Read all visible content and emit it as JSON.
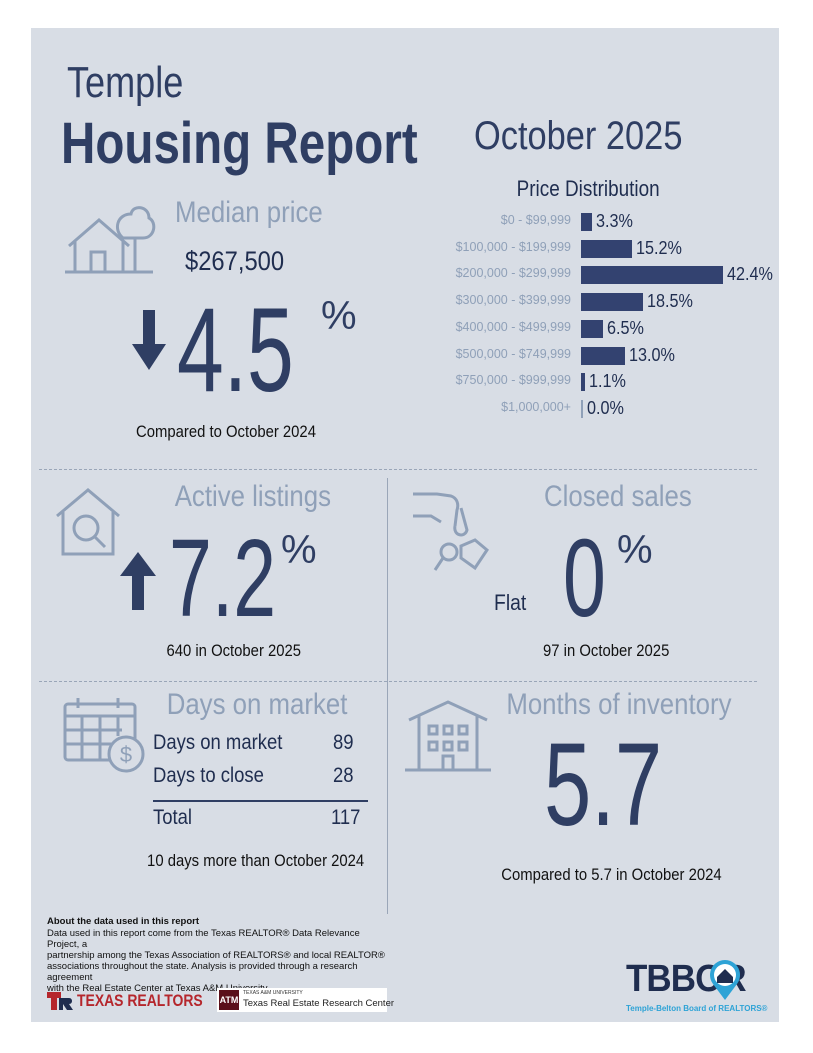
{
  "header": {
    "city": "Temple",
    "report_title": "Housing Report",
    "month": "October 2025"
  },
  "median_price": {
    "title": "Median price",
    "price": "$267,500",
    "change": "4.5",
    "pct_sign": "%",
    "direction": "down",
    "note": "Compared to October 2024"
  },
  "price_distribution": {
    "title": "Price Distribution",
    "rows": [
      {
        "label": "$0 - $99,999",
        "value": "3.3%"
      },
      {
        "label": "$100,000 - $199,999",
        "value": "15.2%"
      },
      {
        "label": "$200,000 - $299,999",
        "value": "42.4%"
      },
      {
        "label": "$300,000 - $399,999",
        "value": "18.5%"
      },
      {
        "label": "$400,000 - $499,999",
        "value": "6.5%"
      },
      {
        "label": "$500,000 - $749,999",
        "value": "13.0%"
      },
      {
        "label": "$750,000 - $999,999",
        "value": "1.1%"
      },
      {
        "label": "$1,000,000+",
        "value": "0.0%"
      }
    ]
  },
  "active_listings": {
    "title": "Active listings",
    "change": "7.2",
    "pct_sign": "%",
    "direction": "up",
    "note": "640 in October 2025"
  },
  "closed_sales": {
    "title": "Closed sales",
    "change": "0",
    "pct_sign": "%",
    "direction_label": "Flat",
    "note": "97 in October 2025"
  },
  "days_on_market": {
    "title": "Days on market",
    "rows": [
      {
        "label": "Days on market",
        "value": "89"
      },
      {
        "label": "Days to close",
        "value": "28"
      }
    ],
    "total_label": "Total",
    "total_value": "117",
    "note": "10 days more than October 2024"
  },
  "months_inventory": {
    "title": "Months of inventory",
    "value": "5.7",
    "note": "Compared to 5.7 in October 2024"
  },
  "footer": {
    "about_title": "About the data used in this report",
    "about_lines": [
      "Data used in this report come from the Texas REALTOR® Data Relevance Project, a",
      "partnership among the Texas Association of REALTORS® and local REALTOR®",
      "associations throughout the state. Analysis is provided through a research agreement",
      "with the Real Estate Center at Texas A&M University."
    ],
    "texas_realtors": "TEXAS REALTORS",
    "tamu_small": "TEXAS A&M UNIVERSITY",
    "tamu_center": "Texas Real Estate Research Center",
    "tbbor_logo": "TBBOR",
    "tbbor_sub": "Temple-Belton Board of REALTORS®"
  },
  "colors": {
    "navy": "#2f3e63",
    "light_blue": "#8fa0b8",
    "panel": "#d8dde5",
    "texas_red": "#b5262c"
  }
}
